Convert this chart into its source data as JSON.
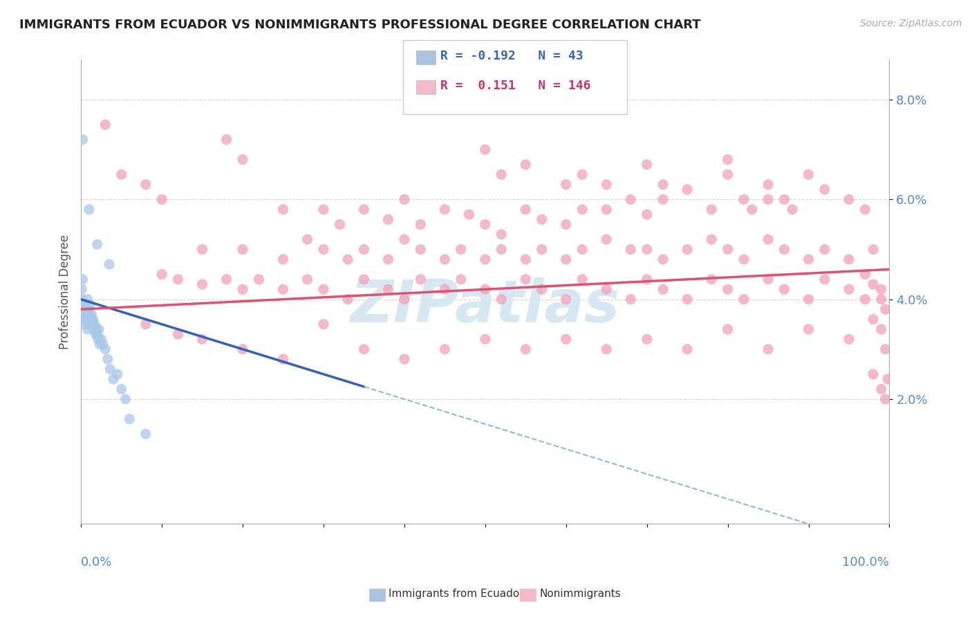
{
  "title": "IMMIGRANTS FROM ECUADOR VS NONIMMIGRANTS PROFESSIONAL DEGREE CORRELATION CHART",
  "source": "Source: ZipAtlas.com",
  "ylabel": "Professional Degree",
  "yaxis_ticks": [
    0.02,
    0.04,
    0.06,
    0.08
  ],
  "yaxis_labels": [
    "2.0%",
    "4.0%",
    "6.0%",
    "8.0%"
  ],
  "xlim": [
    0,
    1.0
  ],
  "ylim": [
    -0.005,
    0.088
  ],
  "immigrants_color": "#a8c8e8",
  "nonimmigrants_color": "#f0a0b8",
  "blue_line_color": "#3060c0",
  "pink_line_color": "#e05070",
  "dashed_line_color": "#90b8d8",
  "background_color": "#ffffff",
  "watermark_text": "ZIPatlas",
  "watermark_color": "#d8e8f0",
  "blue_line_x_start": 0.0,
  "blue_line_x_solid_end": 0.35,
  "blue_line_x_dashed_end": 1.0,
  "blue_line_y_start": 0.04,
  "blue_line_y_end": -0.01,
  "pink_line_y_start": 0.038,
  "pink_line_y_end": 0.046,
  "immigrants_scatter": [
    [
      0.001,
      0.042
    ],
    [
      0.001,
      0.04
    ],
    [
      0.002,
      0.044
    ],
    [
      0.003,
      0.038
    ],
    [
      0.004,
      0.039
    ],
    [
      0.004,
      0.036
    ],
    [
      0.005,
      0.037
    ],
    [
      0.005,
      0.035
    ],
    [
      0.006,
      0.038
    ],
    [
      0.007,
      0.036
    ],
    [
      0.008,
      0.04
    ],
    [
      0.008,
      0.034
    ],
    [
      0.009,
      0.038
    ],
    [
      0.01,
      0.037
    ],
    [
      0.01,
      0.035
    ],
    [
      0.011,
      0.039
    ],
    [
      0.012,
      0.036
    ],
    [
      0.013,
      0.037
    ],
    [
      0.014,
      0.035
    ],
    [
      0.015,
      0.036
    ],
    [
      0.016,
      0.034
    ],
    [
      0.017,
      0.035
    ],
    [
      0.018,
      0.033
    ],
    [
      0.019,
      0.034
    ],
    [
      0.02,
      0.033
    ],
    [
      0.021,
      0.032
    ],
    [
      0.022,
      0.034
    ],
    [
      0.023,
      0.031
    ],
    [
      0.025,
      0.032
    ],
    [
      0.027,
      0.031
    ],
    [
      0.03,
      0.03
    ],
    [
      0.033,
      0.028
    ],
    [
      0.036,
      0.026
    ],
    [
      0.04,
      0.024
    ],
    [
      0.045,
      0.025
    ],
    [
      0.05,
      0.022
    ],
    [
      0.055,
      0.02
    ],
    [
      0.002,
      0.072
    ],
    [
      0.01,
      0.058
    ],
    [
      0.02,
      0.051
    ],
    [
      0.035,
      0.047
    ],
    [
      0.06,
      0.016
    ],
    [
      0.08,
      0.013
    ]
  ],
  "nonimmigrants_scatter": [
    [
      0.03,
      0.075
    ],
    [
      0.18,
      0.072
    ],
    [
      0.2,
      0.068
    ],
    [
      0.05,
      0.065
    ],
    [
      0.08,
      0.063
    ],
    [
      0.1,
      0.06
    ],
    [
      0.25,
      0.058
    ],
    [
      0.3,
      0.058
    ],
    [
      0.32,
      0.055
    ],
    [
      0.35,
      0.058
    ],
    [
      0.38,
      0.056
    ],
    [
      0.4,
      0.06
    ],
    [
      0.42,
      0.055
    ],
    [
      0.45,
      0.058
    ],
    [
      0.48,
      0.057
    ],
    [
      0.5,
      0.055
    ],
    [
      0.52,
      0.053
    ],
    [
      0.55,
      0.058
    ],
    [
      0.57,
      0.056
    ],
    [
      0.6,
      0.055
    ],
    [
      0.62,
      0.058
    ],
    [
      0.65,
      0.058
    ],
    [
      0.68,
      0.06
    ],
    [
      0.7,
      0.057
    ],
    [
      0.72,
      0.06
    ],
    [
      0.75,
      0.062
    ],
    [
      0.78,
      0.058
    ],
    [
      0.8,
      0.065
    ],
    [
      0.82,
      0.06
    ],
    [
      0.83,
      0.058
    ],
    [
      0.85,
      0.063
    ],
    [
      0.87,
      0.06
    ],
    [
      0.88,
      0.058
    ],
    [
      0.9,
      0.065
    ],
    [
      0.92,
      0.062
    ],
    [
      0.95,
      0.06
    ],
    [
      0.97,
      0.058
    ],
    [
      0.98,
      0.05
    ],
    [
      0.15,
      0.05
    ],
    [
      0.2,
      0.05
    ],
    [
      0.25,
      0.048
    ],
    [
      0.28,
      0.052
    ],
    [
      0.3,
      0.05
    ],
    [
      0.33,
      0.048
    ],
    [
      0.35,
      0.05
    ],
    [
      0.38,
      0.048
    ],
    [
      0.4,
      0.052
    ],
    [
      0.42,
      0.05
    ],
    [
      0.45,
      0.048
    ],
    [
      0.47,
      0.05
    ],
    [
      0.5,
      0.048
    ],
    [
      0.52,
      0.05
    ],
    [
      0.55,
      0.048
    ],
    [
      0.57,
      0.05
    ],
    [
      0.6,
      0.048
    ],
    [
      0.62,
      0.05
    ],
    [
      0.65,
      0.052
    ],
    [
      0.68,
      0.05
    ],
    [
      0.7,
      0.05
    ],
    [
      0.72,
      0.048
    ],
    [
      0.75,
      0.05
    ],
    [
      0.78,
      0.052
    ],
    [
      0.8,
      0.05
    ],
    [
      0.82,
      0.048
    ],
    [
      0.85,
      0.052
    ],
    [
      0.87,
      0.05
    ],
    [
      0.9,
      0.048
    ],
    [
      0.92,
      0.05
    ],
    [
      0.95,
      0.048
    ],
    [
      0.97,
      0.045
    ],
    [
      0.98,
      0.043
    ],
    [
      0.99,
      0.042
    ],
    [
      0.99,
      0.04
    ],
    [
      0.995,
      0.038
    ],
    [
      0.1,
      0.045
    ],
    [
      0.12,
      0.044
    ],
    [
      0.15,
      0.043
    ],
    [
      0.18,
      0.044
    ],
    [
      0.2,
      0.042
    ],
    [
      0.22,
      0.044
    ],
    [
      0.25,
      0.042
    ],
    [
      0.28,
      0.044
    ],
    [
      0.3,
      0.042
    ],
    [
      0.33,
      0.04
    ],
    [
      0.35,
      0.044
    ],
    [
      0.38,
      0.042
    ],
    [
      0.4,
      0.04
    ],
    [
      0.42,
      0.044
    ],
    [
      0.45,
      0.042
    ],
    [
      0.47,
      0.044
    ],
    [
      0.5,
      0.042
    ],
    [
      0.52,
      0.04
    ],
    [
      0.55,
      0.044
    ],
    [
      0.57,
      0.042
    ],
    [
      0.6,
      0.04
    ],
    [
      0.62,
      0.044
    ],
    [
      0.65,
      0.042
    ],
    [
      0.68,
      0.04
    ],
    [
      0.7,
      0.044
    ],
    [
      0.72,
      0.042
    ],
    [
      0.75,
      0.04
    ],
    [
      0.78,
      0.044
    ],
    [
      0.8,
      0.042
    ],
    [
      0.82,
      0.04
    ],
    [
      0.85,
      0.044
    ],
    [
      0.87,
      0.042
    ],
    [
      0.9,
      0.04
    ],
    [
      0.92,
      0.044
    ],
    [
      0.95,
      0.042
    ],
    [
      0.97,
      0.04
    ],
    [
      0.98,
      0.036
    ],
    [
      0.99,
      0.034
    ],
    [
      0.995,
      0.03
    ],
    [
      0.998,
      0.024
    ],
    [
      0.08,
      0.035
    ],
    [
      0.12,
      0.033
    ],
    [
      0.15,
      0.032
    ],
    [
      0.2,
      0.03
    ],
    [
      0.25,
      0.028
    ],
    [
      0.3,
      0.035
    ],
    [
      0.35,
      0.03
    ],
    [
      0.4,
      0.028
    ],
    [
      0.45,
      0.03
    ],
    [
      0.5,
      0.032
    ],
    [
      0.55,
      0.03
    ],
    [
      0.6,
      0.032
    ],
    [
      0.65,
      0.03
    ],
    [
      0.7,
      0.032
    ],
    [
      0.75,
      0.03
    ],
    [
      0.8,
      0.034
    ],
    [
      0.85,
      0.03
    ],
    [
      0.9,
      0.034
    ],
    [
      0.95,
      0.032
    ],
    [
      0.98,
      0.025
    ],
    [
      0.99,
      0.022
    ],
    [
      0.995,
      0.02
    ],
    [
      0.5,
      0.07
    ],
    [
      0.52,
      0.065
    ],
    [
      0.55,
      0.067
    ],
    [
      0.6,
      0.063
    ],
    [
      0.62,
      0.065
    ],
    [
      0.65,
      0.063
    ],
    [
      0.7,
      0.067
    ],
    [
      0.72,
      0.063
    ],
    [
      0.8,
      0.068
    ],
    [
      0.85,
      0.06
    ]
  ]
}
